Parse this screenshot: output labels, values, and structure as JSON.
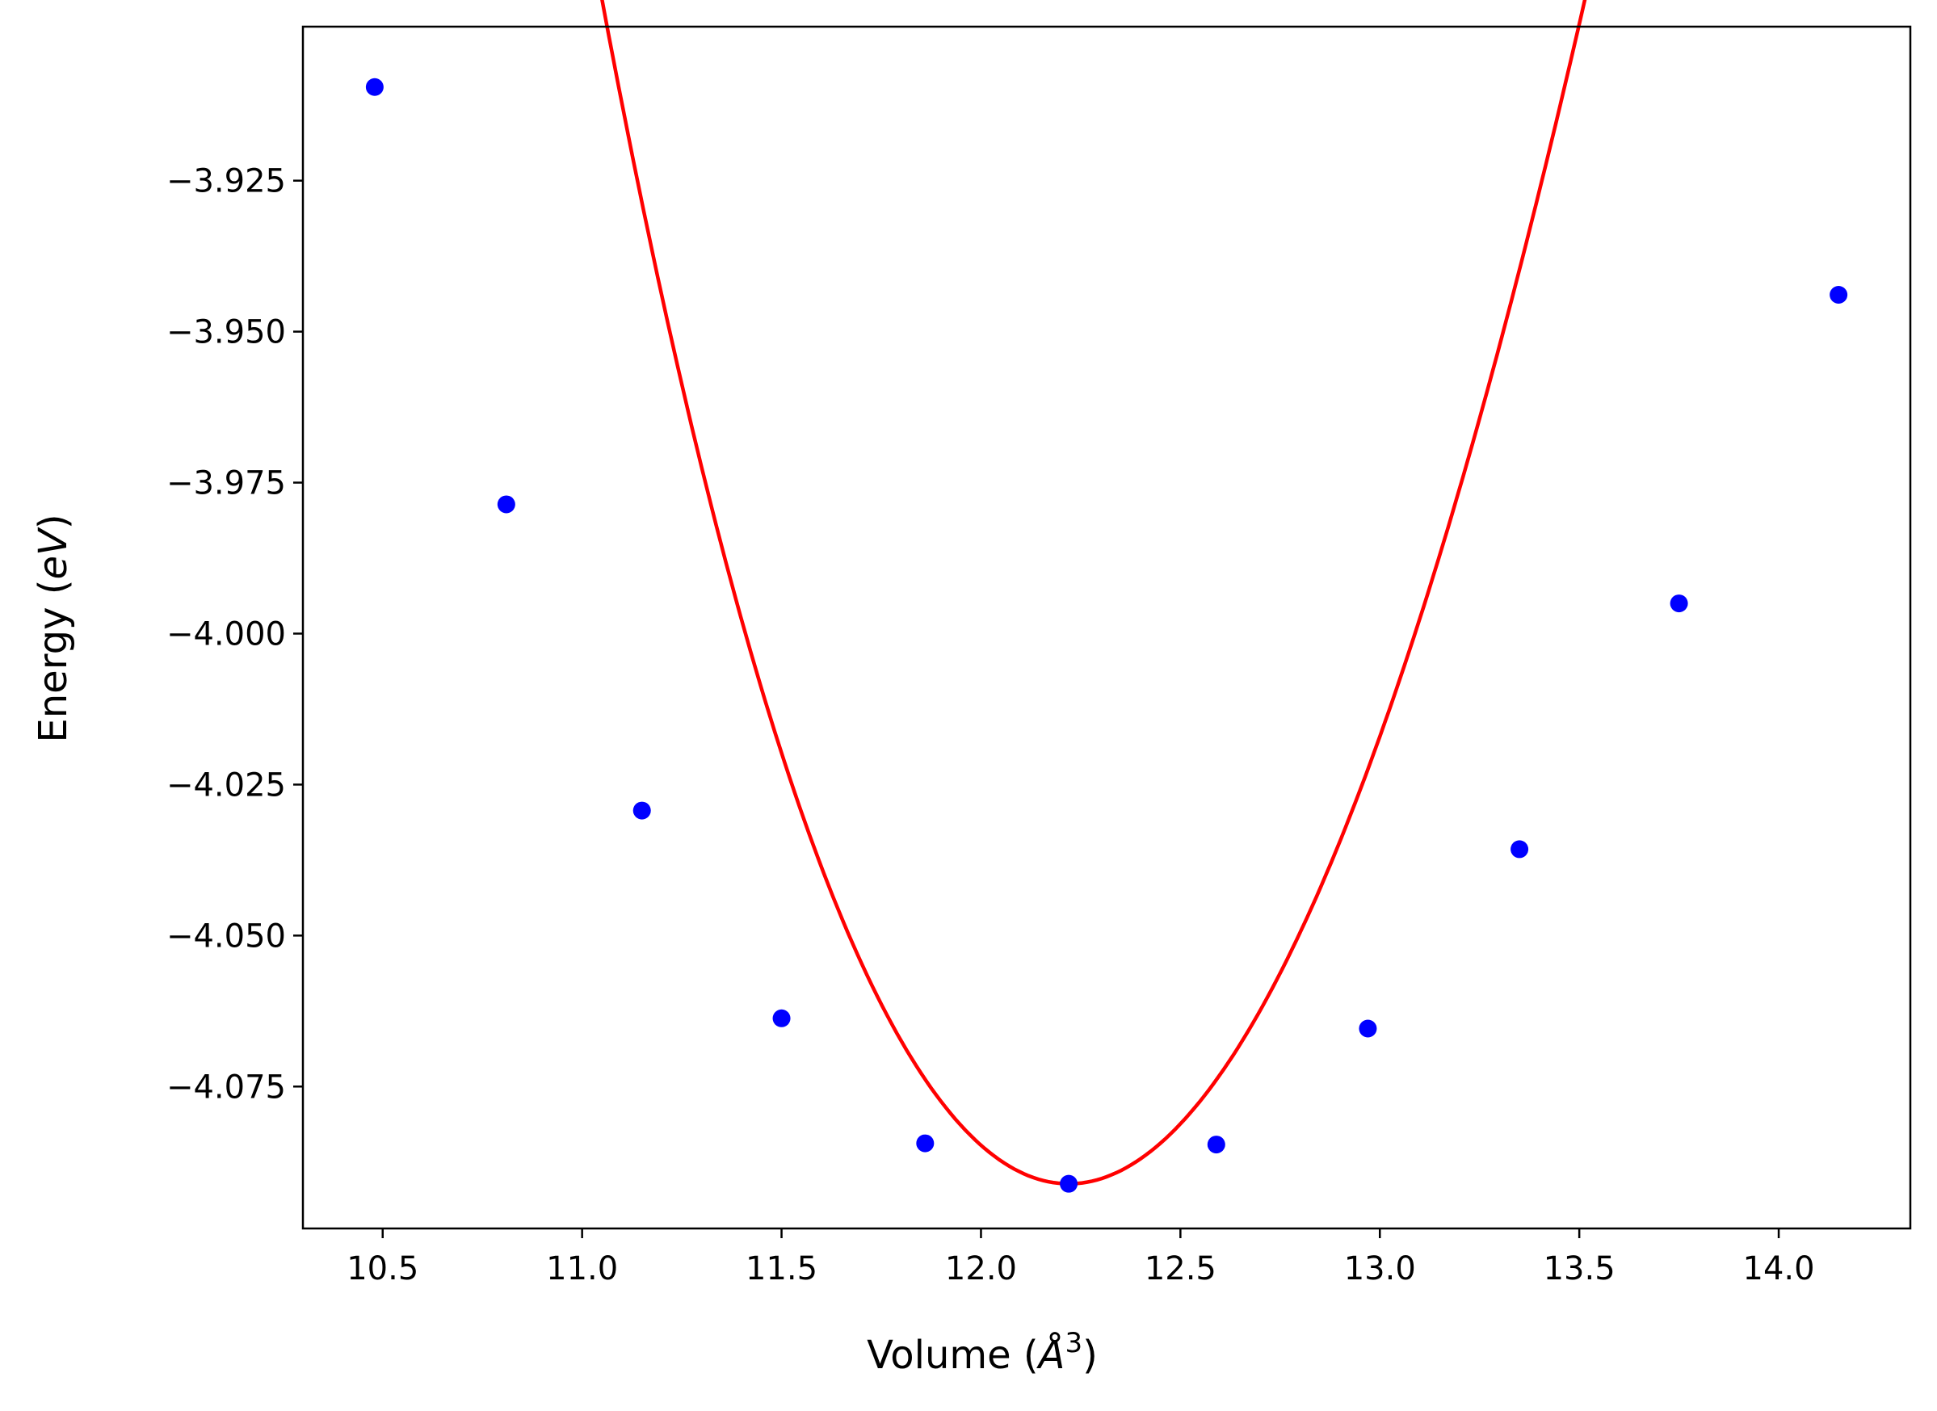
{
  "chart_data": {
    "type": "line",
    "xlabel": "Volume (",
    "xlabel_unit": "Å",
    "xlabel_exponent": "3",
    "xlabel_close": ")",
    "ylabel": "Energy (",
    "ylabel_unit": "eV",
    "ylabel_close": ")",
    "xlim": [
      10.3,
      14.33
    ],
    "ylim": [
      -4.0985,
      -3.8995
    ],
    "x_ticks": [
      10.5,
      11.0,
      11.5,
      12.0,
      12.5,
      13.0,
      13.5,
      14.0
    ],
    "x_tick_labels": [
      "10.5",
      "11.0",
      "11.5",
      "12.0",
      "12.5",
      "13.0",
      "13.5",
      "14.0"
    ],
    "y_ticks": [
      -3.925,
      -3.95,
      -3.975,
      -4.0,
      -4.025,
      -4.05,
      -4.075
    ],
    "y_tick_labels": [
      "−3.925",
      "−3.950",
      "−3.975",
      "−4.000",
      "−4.025",
      "−4.050",
      "−4.075"
    ],
    "grid": false,
    "series": [
      {
        "kind": "points",
        "color": "#0000ff",
        "x": [
          10.48,
          10.81,
          11.15,
          11.5,
          11.86,
          12.22,
          12.59,
          12.97,
          13.35,
          13.75,
          14.15
        ],
        "y": [
          -3.9095,
          -3.9786,
          -4.0293,
          -4.0637,
          -4.0844,
          -4.0911,
          -4.0846,
          -4.0654,
          -4.0357,
          -3.995,
          -3.9439
        ]
      },
      {
        "kind": "fit-curve",
        "color": "#ff0000",
        "x0": 12.22,
        "e0": -4.0911,
        "curvature": 0.1295
      }
    ]
  }
}
